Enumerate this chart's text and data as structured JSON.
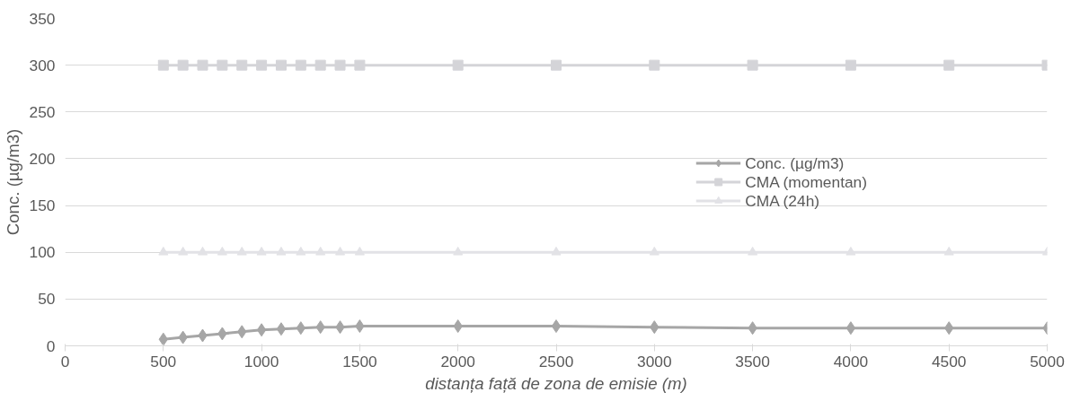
{
  "chart_data": {
    "type": "line",
    "xlabel": "distanța față de zona de emisie (m)",
    "ylabel": "Conc. (µg/m3)",
    "x": [
      500,
      600,
      700,
      800,
      900,
      1000,
      1100,
      1200,
      1300,
      1400,
      1500,
      2000,
      2500,
      3000,
      3500,
      4000,
      4500,
      5000
    ],
    "series": [
      {
        "name": "Conc. (µg/m3)",
        "color": "#a6a6a6",
        "marker": "diamond",
        "values": [
          7,
          9,
          11,
          13,
          15,
          17,
          18,
          19,
          20,
          20,
          21,
          21,
          21,
          20,
          19,
          19,
          19,
          19
        ]
      },
      {
        "name": "CMA (momentan)",
        "color": "#d4d4d8",
        "marker": "square",
        "values": [
          300,
          300,
          300,
          300,
          300,
          300,
          300,
          300,
          300,
          300,
          300,
          300,
          300,
          300,
          300,
          300,
          300,
          300
        ]
      },
      {
        "name": "CMA (24h)",
        "color": "#e2e2e6",
        "marker": "triangle",
        "values": [
          100,
          100,
          100,
          100,
          100,
          100,
          100,
          100,
          100,
          100,
          100,
          100,
          100,
          100,
          100,
          100,
          100,
          100
        ]
      }
    ],
    "xlim": [
      0,
      5000
    ],
    "xticks": [
      0,
      500,
      1000,
      1500,
      2000,
      2500,
      3000,
      3500,
      4000,
      4500,
      5000
    ],
    "ylim": [
      0,
      350
    ],
    "yticks": [
      0,
      50,
      100,
      150,
      200,
      250,
      300,
      350
    ],
    "grid": "y",
    "legend": "right",
    "line_style": "solid"
  }
}
